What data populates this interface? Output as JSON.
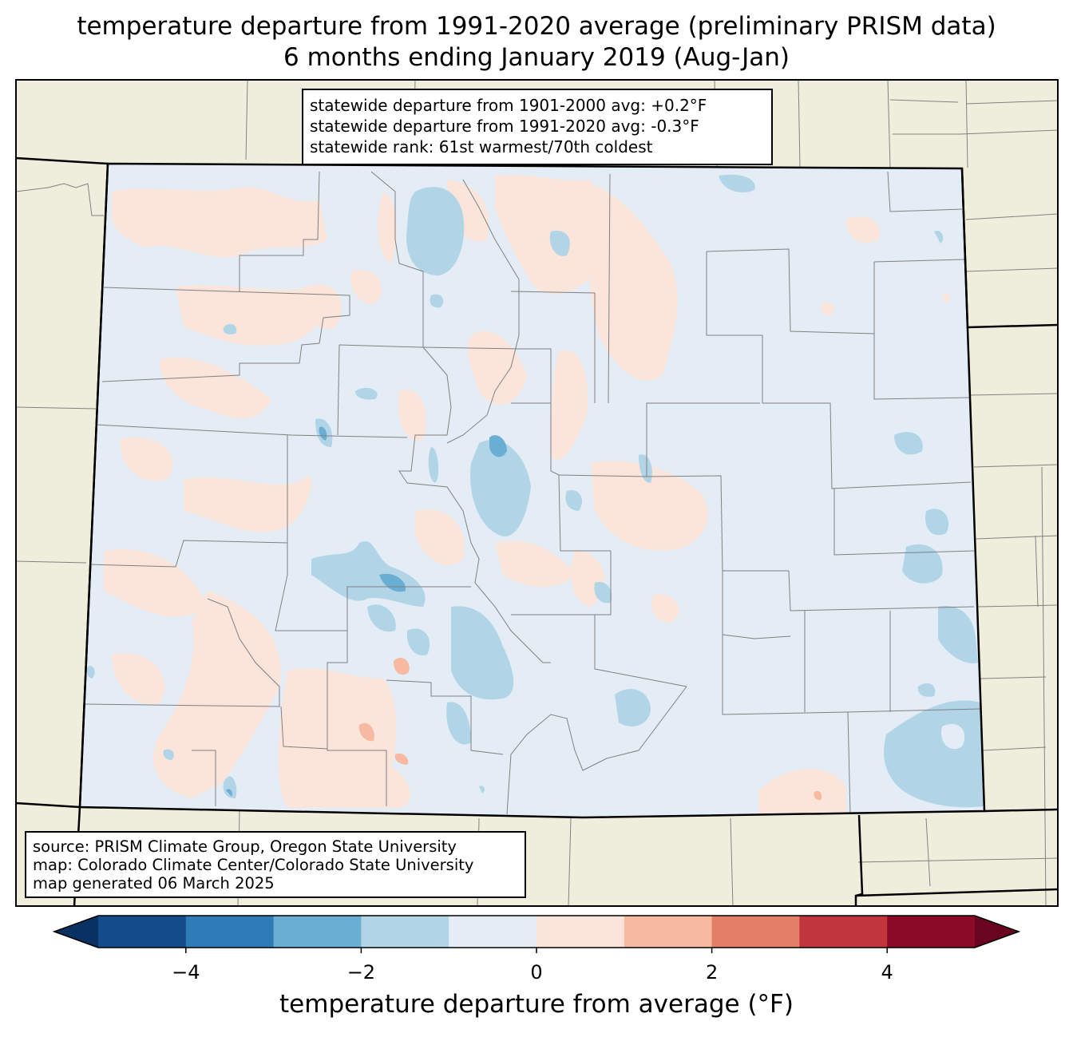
{
  "title_line1": "temperature departure from 1991-2020 average (preliminary PRISM data)",
  "title_line2": "6 months ending January 2019 (Aug-Jan)",
  "stats": {
    "line1": "statewide departure from 1901-2000 avg: +0.2°F",
    "line2": "statewide departure from 1991-2020 avg: -0.3°F",
    "line3": "statewide rank: 61st warmest/70th coldest"
  },
  "source": {
    "line1": "source: PRISM Climate Group, Oregon State University",
    "line2": "map: Colorado Climate Center/Colorado State University",
    "line3": "map generated 06 March 2025"
  },
  "colorbar": {
    "label": "temperature departure from average (°F)",
    "range": [
      -5,
      5
    ],
    "ticks": [
      {
        "value": -4,
        "label": "−4"
      },
      {
        "value": -2,
        "label": "−2"
      },
      {
        "value": 0,
        "label": "0"
      },
      {
        "value": 2,
        "label": "2"
      },
      {
        "value": 4,
        "label": "4"
      }
    ],
    "bins": [
      {
        "from": -5,
        "to": -4,
        "color": "#144b8a"
      },
      {
        "from": -4,
        "to": -3,
        "color": "#2f7bb7"
      },
      {
        "from": -3,
        "to": -2,
        "color": "#6aaed3"
      },
      {
        "from": -2,
        "to": -1,
        "color": "#b1d5e7"
      },
      {
        "from": -1,
        "to": 0,
        "color": "#e4edf5"
      },
      {
        "from": 0,
        "to": 1,
        "color": "#fbe5da"
      },
      {
        "from": 1,
        "to": 2,
        "color": "#f7b99f"
      },
      {
        "from": 2,
        "to": 3,
        "color": "#e27f66"
      },
      {
        "from": 3,
        "to": 4,
        "color": "#c0363c"
      },
      {
        "from": 4,
        "to": 5,
        "color": "#8b0b26"
      }
    ],
    "under_color": "#093263",
    "over_color": "#690421"
  },
  "colors": {
    "land_outside": "#efeedc",
    "state_base": "#e4edf5",
    "warm_patch": "#fbe5da",
    "cool_patch": "#b1d5e7",
    "cool_strong": "#6aaed3",
    "warm_strong": "#f7b99f",
    "county_line": "#808080",
    "state_line": "#000000"
  }
}
